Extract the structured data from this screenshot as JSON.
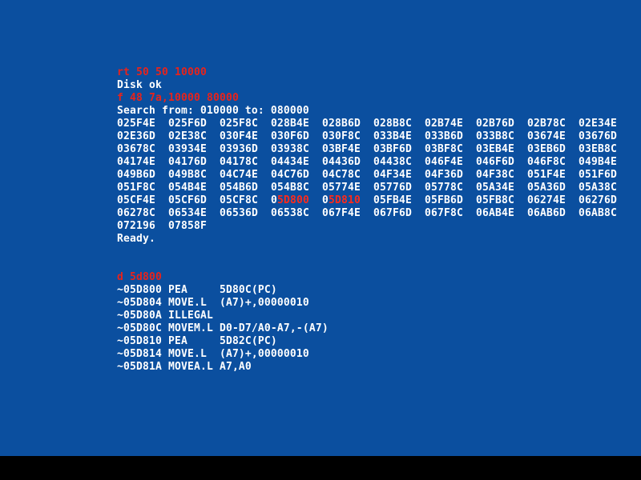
{
  "screen": {
    "blocks": [
      {
        "lines": [
          {
            "text": "rt 50 50 10000",
            "role": "input"
          },
          {
            "text": "Disk ok",
            "role": "output"
          },
          {
            "text": "f 48 7a,10000 80000",
            "role": "input"
          },
          {
            "text": "Search from: 010000 to: 080000",
            "role": "output"
          },
          {
            "cells": [
              "025F4E",
              "025F6D",
              "025F8C",
              "028B4E",
              "028B6D",
              "028B8C",
              "02B74E",
              "02B76D",
              "02B78C",
              "02E34E"
            ]
          },
          {
            "cells": [
              "02E36D",
              "02E38C",
              "030F4E",
              "030F6D",
              "030F8C",
              "033B4E",
              "033B6D",
              "033B8C",
              "03674E",
              "03676D"
            ]
          },
          {
            "cells": [
              "03678C",
              "03934E",
              "03936D",
              "03938C",
              "03BF4E",
              "03BF6D",
              "03BF8C",
              "03EB4E",
              "03EB6D",
              "03EB8C"
            ]
          },
          {
            "cells": [
              "04174E",
              "04176D",
              "04178C",
              "04434E",
              "04436D",
              "04438C",
              "046F4E",
              "046F6D",
              "046F8C",
              "049B4E"
            ]
          },
          {
            "cells": [
              "049B6D",
              "049B8C",
              "04C74E",
              "04C76D",
              "04C78C",
              "04F34E",
              "04F36D",
              "04F38C",
              "051F4E",
              "051F6D"
            ]
          },
          {
            "cells": [
              "051F8C",
              "054B4E",
              "054B6D",
              "054B8C",
              "05774E",
              "05776D",
              "05778C",
              "05A34E",
              "05A36D",
              "05A38C"
            ]
          },
          {
            "cells": [
              "05CF4E",
              "05CF6D",
              "05CF8C",
              {
                "text": "0",
                "mark": "5D800"
              },
              {
                "text": "0",
                "mark": "5D810"
              },
              "05FB4E",
              "05FB6D",
              "05FB8C",
              "06274E",
              "06276D"
            ]
          },
          {
            "cells": [
              "06278C",
              "06534E",
              "06536D",
              "06538C",
              "067F4E",
              "067F6D",
              "067F8C",
              "06AB4E",
              "06AB6D",
              "06AB8C"
            ]
          },
          {
            "cells": [
              "072196",
              "07858F"
            ]
          },
          {
            "text": "Ready.",
            "role": "output"
          }
        ]
      },
      {
        "lines": [
          {
            "text": "d 5d800",
            "role": "input"
          },
          {
            "text": "~05D800 PEA     5D80C(PC)",
            "role": "output"
          },
          {
            "text": "~05D804 MOVE.L  (A7)+,00000010",
            "role": "output"
          },
          {
            "text": "~05D80A ILLEGAL",
            "role": "output"
          },
          {
            "text": "~05D80C MOVEM.L D0-D7/A0-A7,-(A7)",
            "role": "output"
          },
          {
            "text": "~05D810 PEA     5D82C(PC)",
            "role": "output"
          },
          {
            "text": "~05D814 MOVE.L  (A7)+,00000010",
            "role": "output"
          },
          {
            "text": "~05D81A MOVEA.L A7,A0",
            "role": "output"
          }
        ]
      }
    ]
  }
}
